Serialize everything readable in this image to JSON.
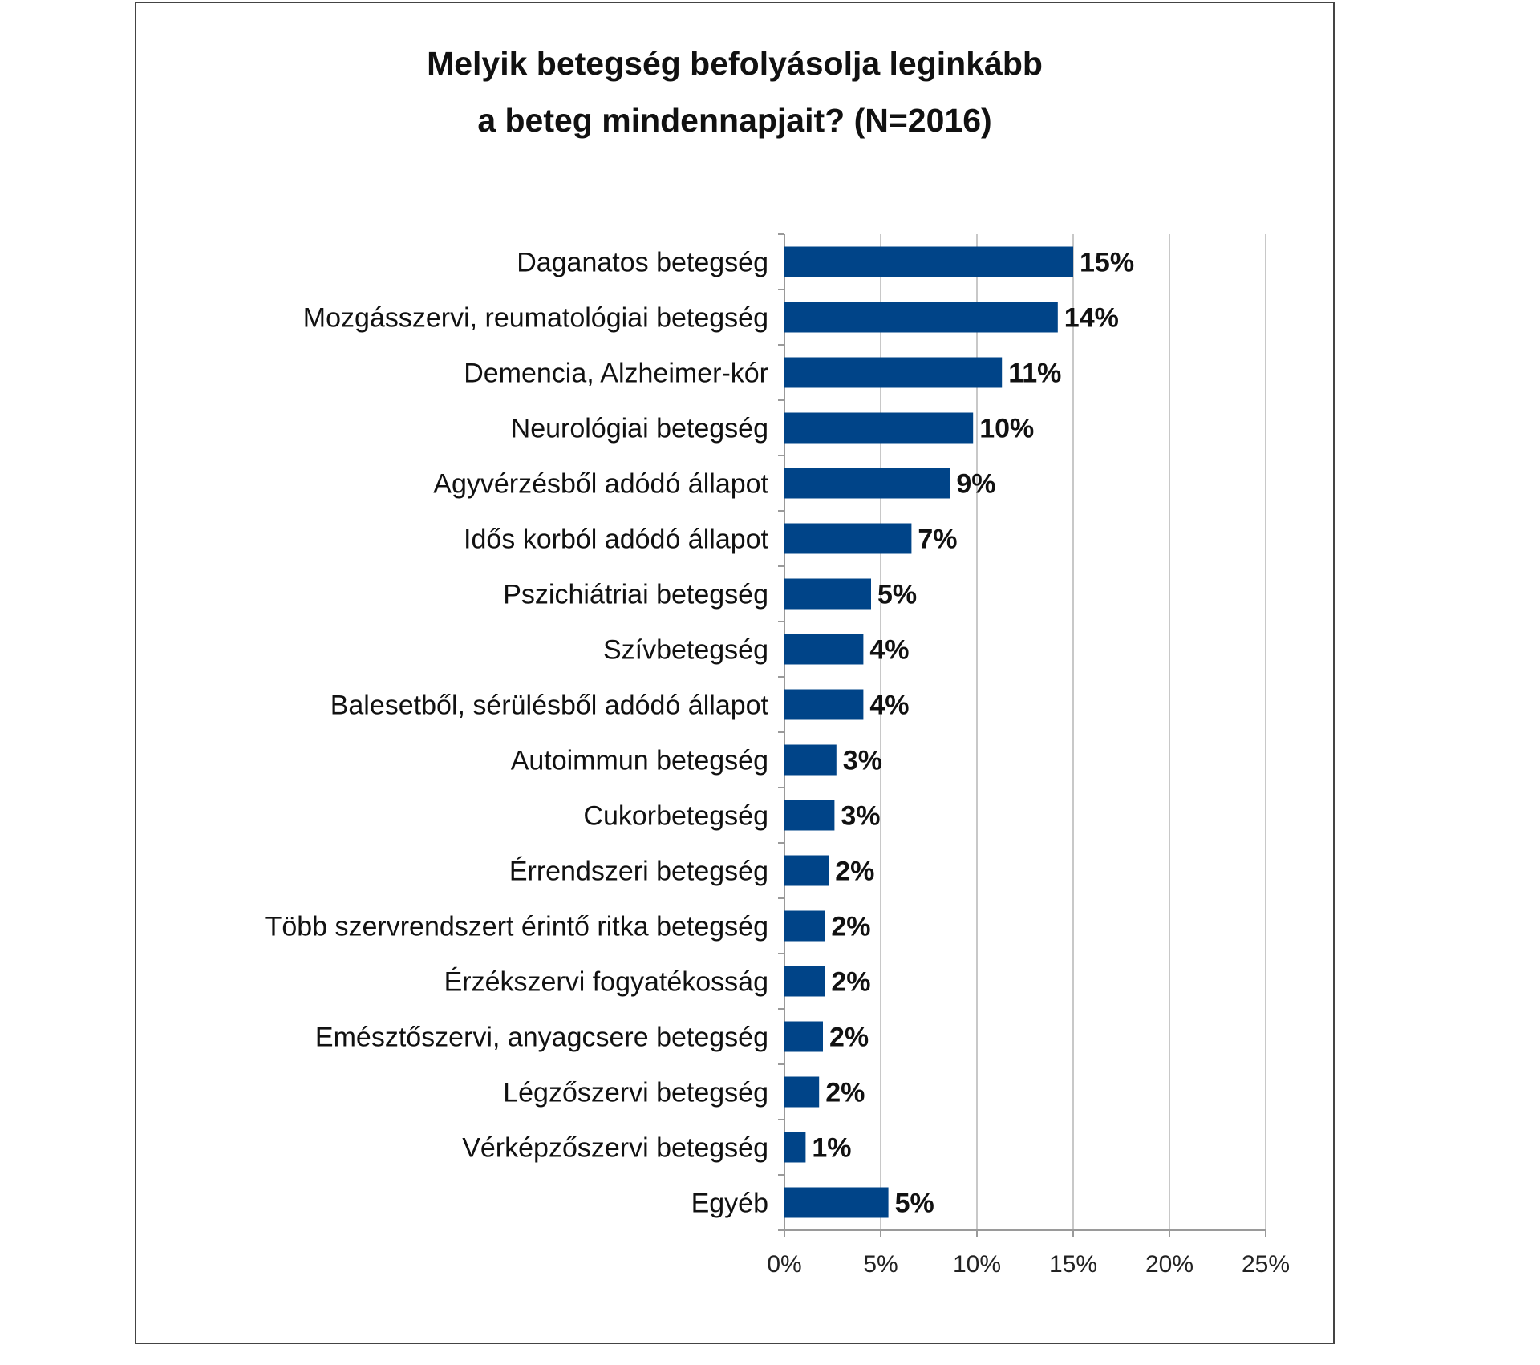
{
  "chart_data": {
    "type": "bar",
    "orientation": "horizontal",
    "title": [
      "Melyik betegség befolyásolja leginkább",
      "a beteg mindennapjait? (N=2016)"
    ],
    "categories": [
      "Daganatos betegség",
      "Mozgásszervi, reumatológiai betegség",
      "Demencia, Alzheimer-kór",
      "Neurológiai betegség",
      "Agyvérzésből adódó állapot",
      "Idős korból adódó állapot",
      "Pszichiátriai betegség",
      "Szívbetegség",
      "Balesetből, sérülésből adódó állapot",
      "Autoimmun betegség",
      "Cukorbetegség",
      "Érrendszeri betegség",
      "Több szervrendszert érintő ritka betegség",
      "Érzékszervi fogyatékosság",
      "Emésztőszervi, anyagcsere betegség",
      "Légzőszervi betegség",
      "Vérképzőszervi betegség",
      "Egyéb"
    ],
    "values": [
      15.0,
      14.2,
      11.3,
      9.8,
      8.6,
      6.6,
      4.5,
      4.1,
      4.1,
      2.7,
      2.6,
      2.3,
      2.1,
      2.1,
      2.0,
      1.8,
      1.1,
      5.4
    ],
    "data_labels": [
      "15%",
      "14%",
      "11%",
      "10%",
      "9%",
      "7%",
      "5%",
      "4%",
      "4%",
      "3%",
      "3%",
      "2%",
      "2%",
      "2%",
      "2%",
      "2%",
      "1%",
      "5%"
    ],
    "xlim": [
      0,
      25
    ],
    "x_ticks": [
      0,
      5,
      10,
      15,
      20,
      25
    ],
    "x_tick_labels": [
      "0%",
      "5%",
      "10%",
      "15%",
      "20%",
      "25%"
    ],
    "grid": true,
    "legend": "none",
    "bar_color": "#004488"
  }
}
